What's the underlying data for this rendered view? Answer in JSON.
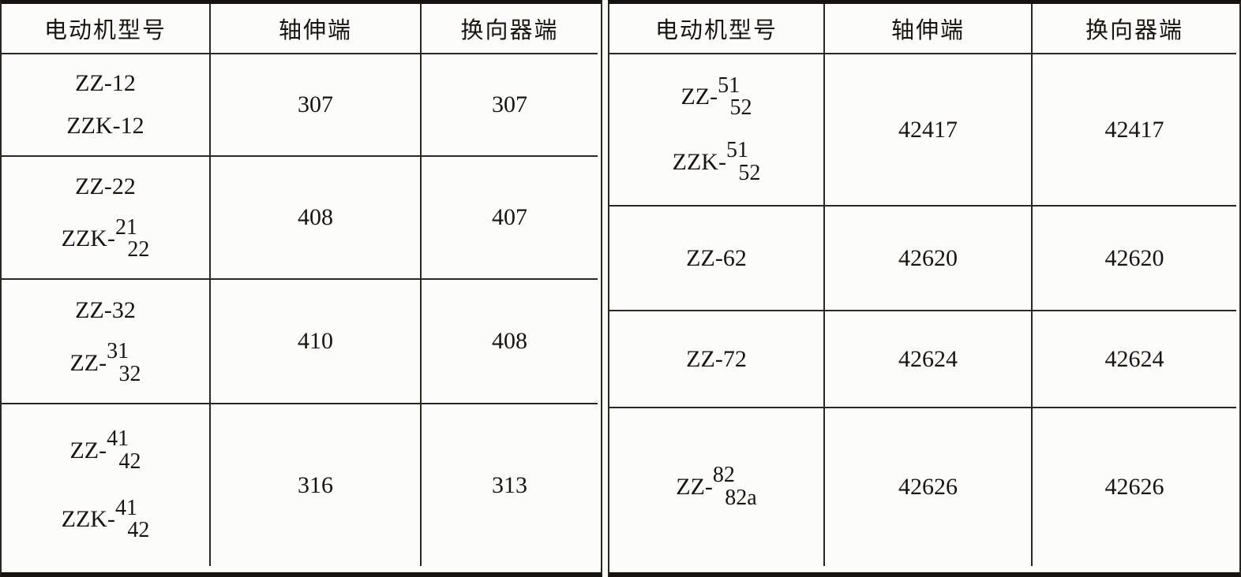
{
  "left_table": {
    "headers": [
      "电动机型号",
      "轴伸端",
      "换向器端"
    ],
    "rows": [
      {
        "models": [
          {
            "text": "ZZ-12"
          },
          {
            "text": "ZZK-12"
          }
        ],
        "shaft": "307",
        "commutator": "307"
      },
      {
        "models": [
          {
            "text": "ZZ-22"
          },
          {
            "prefix": "ZZK-",
            "top": "21",
            "bottom": "22"
          }
        ],
        "shaft": "408",
        "commutator": "407"
      },
      {
        "models": [
          {
            "text": "ZZ-32"
          },
          {
            "prefix": "ZZ-",
            "top": "31",
            "bottom": "32"
          }
        ],
        "shaft": "410",
        "commutator": "408"
      },
      {
        "models": [
          {
            "prefix": "ZZ-",
            "top": "41",
            "bottom": "42"
          },
          {
            "prefix": "ZZK-",
            "top": "41",
            "bottom": "42"
          }
        ],
        "shaft": "316",
        "commutator": "313"
      }
    ]
  },
  "right_table": {
    "headers": [
      "电动机型号",
      "轴伸端",
      "换向器端"
    ],
    "rows": [
      {
        "models": [
          {
            "prefix": "ZZ-",
            "top": "51",
            "bottom": "52"
          },
          {
            "prefix": "ZZK-",
            "top": "51",
            "bottom": "52"
          }
        ],
        "shaft": "42417",
        "commutator": "42417"
      },
      {
        "models": [
          {
            "text": "ZZ-62"
          }
        ],
        "shaft": "42620",
        "commutator": "42620"
      },
      {
        "models": [
          {
            "text": "ZZ-72"
          }
        ],
        "shaft": "42624",
        "commutator": "42624"
      },
      {
        "models": [
          {
            "prefix": "ZZ-",
            "top": "82",
            "bottom": "82a"
          }
        ],
        "shaft": "42626",
        "commutator": "42626"
      }
    ]
  },
  "colors": {
    "rule_thick": "#161310",
    "rule_thin": "#2b2823",
    "background": "#fbfbf8",
    "text": "#181511"
  }
}
